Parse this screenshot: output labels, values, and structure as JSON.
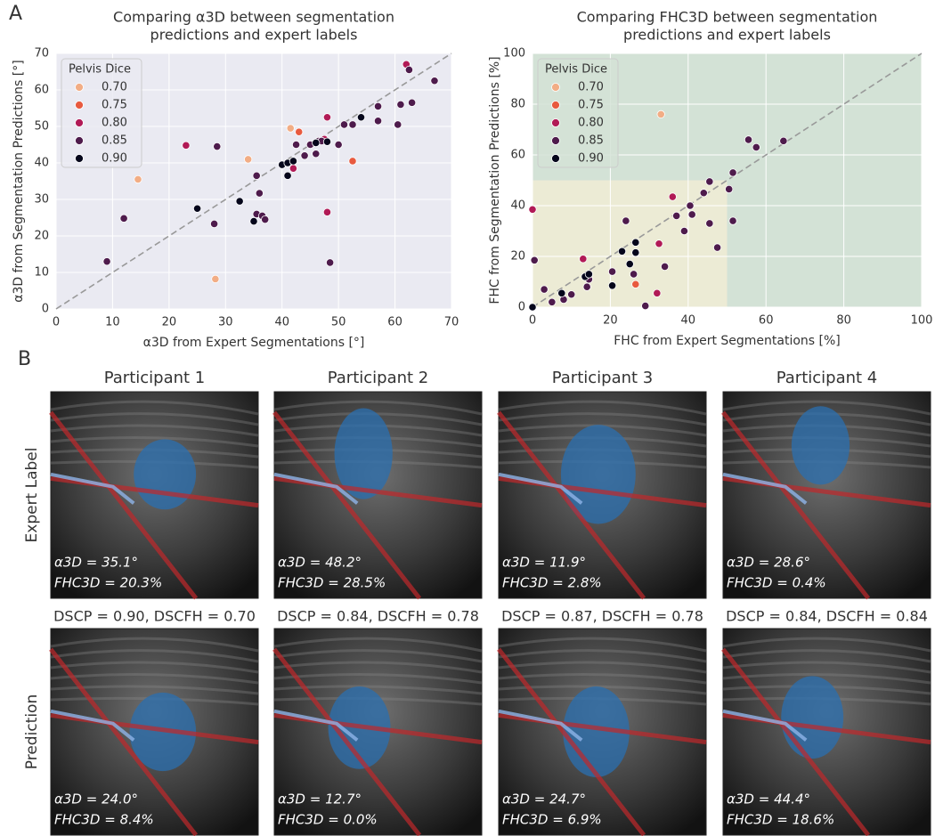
{
  "panel_labels": [
    "A",
    "B"
  ],
  "chart_data": [
    {
      "type": "scatter",
      "title": [
        "Comparing α3D between segmentation",
        "predictions and expert labels"
      ],
      "x_label": "α3D from Expert Segmentations [°]",
      "y_label": "α3D from Segmentation Predictions [°]",
      "xlim": [
        0,
        70
      ],
      "ylim": [
        0,
        70
      ],
      "xticks": [
        0,
        10,
        20,
        30,
        40,
        50,
        60,
        70
      ],
      "yticks": [
        0,
        10,
        20,
        30,
        40,
        50,
        60,
        70
      ],
      "grid": true,
      "identity_line": true,
      "plot_background": "#eaeaf2",
      "legend_title": "Pelvis Dice",
      "legend_position": "upper left",
      "series": [
        {
          "name": "0.70",
          "color": "#f2ad85",
          "x": [
            14.5,
            28.2,
            34,
            41.5
          ],
          "values": [
            35.5,
            8.2,
            41,
            49.5
          ]
        },
        {
          "name": "0.75",
          "color": "#e85a3f",
          "x": [
            52.5,
            43
          ],
          "values": [
            40.5,
            48.5
          ]
        },
        {
          "name": "0.80",
          "color": "#b11a56",
          "x": [
            23,
            42,
            48,
            48,
            47.5,
            62
          ],
          "values": [
            44.8,
            38.5,
            26.5,
            52.5,
            46.5,
            67
          ]
        },
        {
          "name": "0.85",
          "color": "#4e1b4c",
          "x": [
            9,
            12,
            28.5,
            28,
            35.5,
            35.5,
            36,
            36.5,
            37,
            42.5,
            44,
            45,
            46,
            46.5,
            47,
            48.5,
            50,
            51,
            52.5,
            57,
            57,
            60.5,
            61,
            62.5,
            63,
            67
          ],
          "values": [
            13,
            24.8,
            44.5,
            23.3,
            36.5,
            26,
            31.7,
            25.5,
            24.5,
            45,
            42,
            45,
            42.5,
            46,
            46,
            12.7,
            45,
            50.5,
            50.5,
            55.5,
            51.5,
            50.5,
            56,
            65.5,
            56.5,
            62.5
          ]
        },
        {
          "name": "0.90",
          "color": "#05061b",
          "x": [
            25,
            32.5,
            35,
            40,
            41,
            41,
            42,
            46,
            54,
            48
          ],
          "values": [
            27.5,
            29.5,
            24,
            39.5,
            40,
            36.5,
            40.5,
            45.5,
            52.5,
            45.8
          ]
        }
      ]
    },
    {
      "type": "scatter",
      "title": [
        "Comparing FHC3D between segmentation",
        "predictions and expert labels"
      ],
      "x_label": "FHC from Expert Segmentations [%]",
      "y_label": "FHC from Segmentation Predictions [%]",
      "xlim": [
        0,
        100
      ],
      "ylim": [
        0,
        100
      ],
      "xticks": [
        0,
        20,
        40,
        60,
        80,
        100
      ],
      "yticks": [
        0,
        20,
        40,
        60,
        80,
        100
      ],
      "grid": true,
      "identity_line": true,
      "plot_background": "#d3e2d6",
      "shaded_regions": [
        {
          "xlim": [
            0,
            50
          ],
          "ylim": [
            0,
            50
          ],
          "color": "#ecebd5"
        }
      ],
      "legend_title": "Pelvis Dice",
      "legend_position": "upper left",
      "series": [
        {
          "name": "0.70",
          "color": "#f2ad85",
          "x": [
            33
          ],
          "values": [
            76
          ]
        },
        {
          "name": "0.75",
          "color": "#e85a3f",
          "x": [
            26.5
          ],
          "values": [
            9
          ]
        },
        {
          "name": "0.80",
          "color": "#b11a56",
          "x": [
            0,
            13,
            32,
            32.5,
            36
          ],
          "values": [
            38.5,
            19,
            5.5,
            25,
            43.5
          ]
        },
        {
          "name": "0.85",
          "color": "#4e1b4c",
          "x": [
            0.5,
            3,
            5,
            8,
            10,
            14,
            14.5,
            20.5,
            24,
            26,
            29,
            34,
            37,
            39,
            40.5,
            41,
            44,
            45.5,
            45.5,
            47.5,
            50.5,
            51.5,
            51.5,
            55.5,
            57.5,
            64.5
          ],
          "values": [
            18.5,
            7,
            2,
            3,
            5,
            8,
            11,
            14,
            34,
            13,
            0.5,
            16,
            36,
            30,
            40,
            36.5,
            45,
            33,
            49.5,
            23.5,
            46.5,
            34,
            53,
            66,
            63,
            65.5
          ]
        },
        {
          "name": "0.90",
          "color": "#05061b",
          "x": [
            0,
            7.5,
            13.5,
            14.5,
            20.5,
            23,
            25,
            26.5,
            26.5
          ],
          "values": [
            0,
            5.5,
            12,
            13,
            8.5,
            22,
            17,
            25.5,
            21.5
          ]
        }
      ]
    }
  ],
  "panel_b": {
    "columns": [
      "Participant 1",
      "Participant 2",
      "Participant 3",
      "Participant 4"
    ],
    "rows": [
      "Expert Label",
      "Prediction"
    ],
    "expert": [
      {
        "alpha": "α3D = 35.1°",
        "fhc": "FHC3D = 20.3%"
      },
      {
        "alpha": "α3D = 48.2°",
        "fhc": "FHC3D = 28.5%"
      },
      {
        "alpha": "α3D = 11.9°",
        "fhc": "FHC3D = 2.8%"
      },
      {
        "alpha": "α3D = 28.6°",
        "fhc": "FHC3D = 0.4%"
      }
    ],
    "dice": [
      "DSCP = 0.90, DSCFH = 0.70",
      "DSCP = 0.84, DSCFH = 0.78",
      "DSCP = 0.87, DSCFH = 0.78",
      "DSCP = 0.84, DSCFH = 0.84"
    ],
    "prediction": [
      {
        "alpha": "α3D = 24.0°",
        "fhc": "FHC3D = 8.4%"
      },
      {
        "alpha": "α3D = 12.7°",
        "fhc": "FHC3D = 0.0%"
      },
      {
        "alpha": "α3D = 24.7°",
        "fhc": "FHC3D = 6.9%"
      },
      {
        "alpha": "α3D = 44.4°",
        "fhc": "FHC3D = 18.6%"
      }
    ]
  }
}
